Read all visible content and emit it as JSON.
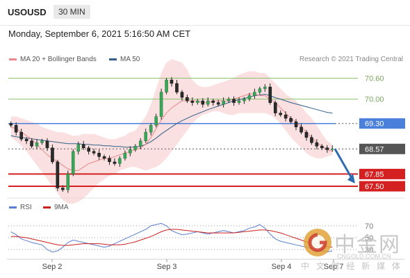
{
  "header": {
    "symbol": "USOUSD",
    "timeframe": "30 MIN",
    "datetime": "Monday, September 6, 2021 5:16:50 AM CET"
  },
  "legend": {
    "items": [
      {
        "label": "MA 20 + Bollinger Bands",
        "color": "#e8888a"
      },
      {
        "label": "MA 50",
        "color": "#2f5f8a"
      }
    ],
    "credit": "Research © 2021 Trading Central"
  },
  "rsi_legend": {
    "items": [
      {
        "label": "RSI",
        "color": "#5b7fcf"
      },
      {
        "label": "9MA",
        "color": "#cc1f1f"
      }
    ]
  },
  "watermark": {
    "name": "中金网",
    "url": "CNGOLD.COM.CN",
    "tagline": "中 文 财 经 新 媒 体"
  },
  "chart_data": [
    {
      "type": "candlestick",
      "x_ticks": [
        "Sep 2",
        "Sep 3",
        "Sep 4",
        "Sep 7"
      ],
      "ylim": [
        67.2,
        70.85
      ],
      "current_price": 68.57,
      "horizontal_levels": [
        {
          "label": "70.60",
          "value": 70.6,
          "color": "#8cc06a",
          "style": "resistance"
        },
        {
          "label": "70.00",
          "value": 70.0,
          "color": "#8cc06a",
          "style": "resistance"
        },
        {
          "label": "69.30",
          "value": 69.3,
          "color": "#4a7fdc",
          "style": "pivot"
        },
        {
          "label": "68.57",
          "value": 68.57,
          "color": "#2b2b2b",
          "style": "current"
        },
        {
          "label": "67.85",
          "value": 67.85,
          "color": "#d42020",
          "style": "support"
        },
        {
          "label": "67.50",
          "value": 67.5,
          "color": "#d42020",
          "style": "support"
        }
      ],
      "close": [
        69.25,
        69.05,
        68.85,
        68.8,
        68.65,
        68.75,
        68.8,
        68.6,
        68.2,
        67.45,
        67.4,
        67.85,
        68.5,
        68.7,
        68.6,
        68.5,
        68.45,
        68.35,
        68.3,
        68.2,
        68.15,
        68.3,
        68.45,
        68.55,
        68.65,
        68.8,
        69.05,
        69.25,
        69.5,
        70.2,
        70.55,
        70.45,
        70.2,
        70.05,
        69.95,
        69.9,
        69.95,
        69.85,
        69.95,
        69.9,
        69.85,
        69.95,
        70.0,
        69.9,
        69.95,
        70.0,
        70.1,
        70.2,
        70.3,
        70.35,
        69.9,
        69.6,
        69.55,
        69.45,
        69.35,
        69.2,
        69.05,
        68.9,
        68.75,
        68.65,
        68.6,
        68.55,
        68.57
      ],
      "bollinger_upper": [
        69.5,
        69.5,
        69.45,
        69.4,
        69.35,
        69.3,
        69.2,
        69.15,
        69.1,
        69.05,
        69.05,
        69.0,
        68.95,
        68.95,
        69.0,
        69.0,
        69.0,
        68.95,
        68.9,
        68.85,
        68.85,
        68.9,
        68.95,
        69.05,
        69.1,
        69.3,
        69.5,
        69.85,
        70.3,
        70.75,
        71.05,
        71.15,
        71.1,
        71.05,
        70.85,
        70.55,
        70.4,
        70.35,
        70.35,
        70.4,
        70.45,
        70.5,
        70.55,
        70.6,
        70.7,
        70.75,
        70.8,
        70.8,
        70.75,
        70.75,
        70.6,
        70.45,
        70.3,
        70.15,
        70.05,
        69.95,
        69.8,
        69.6,
        69.45,
        69.25,
        69.0,
        68.8,
        68.7
      ],
      "bollinger_lower": [
        68.9,
        68.8,
        68.65,
        68.5,
        68.3,
        68.1,
        67.9,
        67.7,
        67.5,
        67.3,
        67.1,
        67.0,
        67.0,
        67.05,
        67.15,
        67.3,
        67.45,
        67.6,
        67.7,
        67.8,
        67.85,
        67.95,
        68.0,
        68.05,
        68.05,
        68.0,
        67.95,
        68.0,
        68.05,
        68.15,
        68.3,
        68.5,
        68.7,
        68.9,
        69.1,
        69.3,
        69.45,
        69.55,
        69.6,
        69.65,
        69.65,
        69.6,
        69.55,
        69.55,
        69.6,
        69.6,
        69.6,
        69.6,
        69.6,
        69.6,
        69.55,
        69.45,
        69.3,
        69.1,
        68.9,
        68.75,
        68.6,
        68.45,
        68.35,
        68.3,
        68.3,
        68.35,
        68.4
      ],
      "ma20": [
        69.2,
        69.15,
        69.05,
        68.95,
        68.85,
        68.7,
        68.55,
        68.4,
        68.3,
        68.2,
        68.1,
        68.0,
        67.95,
        67.95,
        68.05,
        68.15,
        68.2,
        68.25,
        68.3,
        68.3,
        68.35,
        68.4,
        68.45,
        68.5,
        68.55,
        68.6,
        68.7,
        68.9,
        69.15,
        69.4,
        69.6,
        69.75,
        69.85,
        69.95,
        69.95,
        69.95,
        69.95,
        69.9,
        69.9,
        69.95,
        69.95,
        69.95,
        69.95,
        70.0,
        70.05,
        70.1,
        70.15,
        70.15,
        70.1,
        70.1,
        70.0,
        69.9,
        69.75,
        69.6,
        69.45,
        69.35,
        69.2,
        69.05,
        68.9,
        68.75,
        68.65,
        68.55,
        68.5
      ],
      "ma50": [
        68.95,
        68.92,
        68.9,
        68.88,
        68.86,
        68.84,
        68.82,
        68.8,
        68.78,
        68.76,
        68.74,
        68.72,
        68.72,
        68.72,
        68.7,
        68.7,
        68.68,
        68.68,
        68.66,
        68.66,
        68.64,
        68.64,
        68.62,
        68.62,
        68.62,
        68.65,
        68.7,
        68.78,
        68.88,
        69.0,
        69.1,
        69.2,
        69.3,
        69.38,
        69.45,
        69.52,
        69.58,
        69.64,
        69.7,
        69.75,
        69.8,
        69.85,
        69.9,
        69.95,
        69.98,
        70.02,
        70.06,
        70.1,
        70.12,
        70.14,
        70.1,
        70.04,
        70.0,
        69.95,
        69.9,
        69.86,
        69.82,
        69.78,
        69.74,
        69.7,
        69.66,
        69.62,
        69.6
      ]
    },
    {
      "type": "line",
      "panel": "RSI",
      "y_ticks": [
        "70",
        "50",
        "30"
      ],
      "ylim": [
        15,
        85
      ],
      "series": [
        {
          "name": "RSI",
          "values": [
            60,
            55,
            48,
            45,
            42,
            40,
            38,
            30,
            26,
            28,
            34,
            42,
            46,
            44,
            42,
            40,
            38,
            36,
            34,
            36,
            40,
            44,
            48,
            52,
            56,
            60,
            64,
            70,
            72,
            74,
            70,
            62,
            58,
            55,
            56,
            58,
            60,
            58,
            56,
            58,
            60,
            62,
            60,
            58,
            60,
            62,
            66,
            68,
            72,
            66,
            56,
            48,
            44,
            42,
            40,
            38,
            36,
            34,
            32,
            30,
            28,
            26,
            28
          ]
        },
        {
          "name": "9MA",
          "values": [
            52,
            52,
            51,
            50,
            48,
            46,
            44,
            42,
            40,
            38,
            37,
            37,
            38,
            39,
            40,
            40,
            40,
            40,
            39,
            38,
            38,
            38,
            39,
            41,
            43,
            46,
            49,
            52,
            56,
            60,
            63,
            64,
            64,
            63,
            62,
            61,
            60,
            59,
            58,
            58,
            58,
            58,
            58,
            58,
            59,
            60,
            61,
            62,
            63,
            63,
            62,
            60,
            58,
            55,
            52,
            49,
            46,
            43,
            41,
            39,
            37,
            35,
            34
          ]
        }
      ]
    }
  ]
}
